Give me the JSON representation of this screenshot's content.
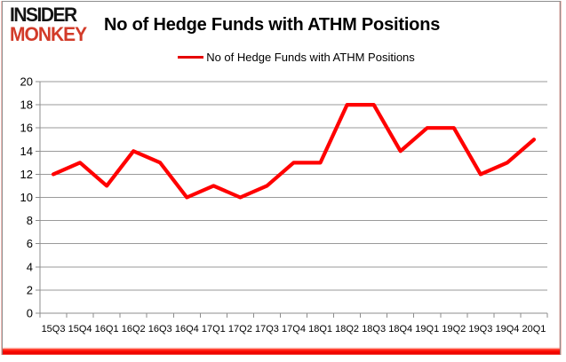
{
  "logo": {
    "line1": "INSIDER",
    "line2": "MONKEY"
  },
  "header": {
    "title": "No of Hedge Funds with ATHM Positions"
  },
  "legend": {
    "label": "No of Hedge Funds with ATHM Positions"
  },
  "colors": {
    "series_line": "#ff0000",
    "legend_swatch": "#e60000",
    "logo_red": "#d23b29",
    "grid": "#9a9a9a",
    "footer_bar": "#ff0000",
    "text": "#000000"
  },
  "chart_data": {
    "type": "line",
    "title": "No of Hedge Funds with ATHM Positions",
    "legend_entries": [
      "No of Hedge Funds with ATHM Positions"
    ],
    "legend_position": "top-center",
    "categories": [
      "15Q3",
      "15Q4",
      "16Q1",
      "16Q2",
      "16Q3",
      "16Q4",
      "17Q1",
      "17Q2",
      "17Q3",
      "17Q4",
      "18Q1",
      "18Q2",
      "18Q3",
      "18Q4",
      "19Q1",
      "19Q2",
      "19Q3",
      "19Q4",
      "20Q1"
    ],
    "values": [
      12,
      13,
      11,
      14,
      13,
      10,
      11,
      10,
      11,
      13,
      13,
      18,
      18,
      14,
      16,
      16,
      12,
      13,
      15
    ],
    "xlabel": "",
    "ylabel": "",
    "ylim": [
      0,
      20
    ],
    "yticks": [
      0,
      2,
      4,
      6,
      8,
      10,
      12,
      14,
      16,
      18,
      20
    ],
    "grid": true,
    "line_color": "#ff0000"
  }
}
